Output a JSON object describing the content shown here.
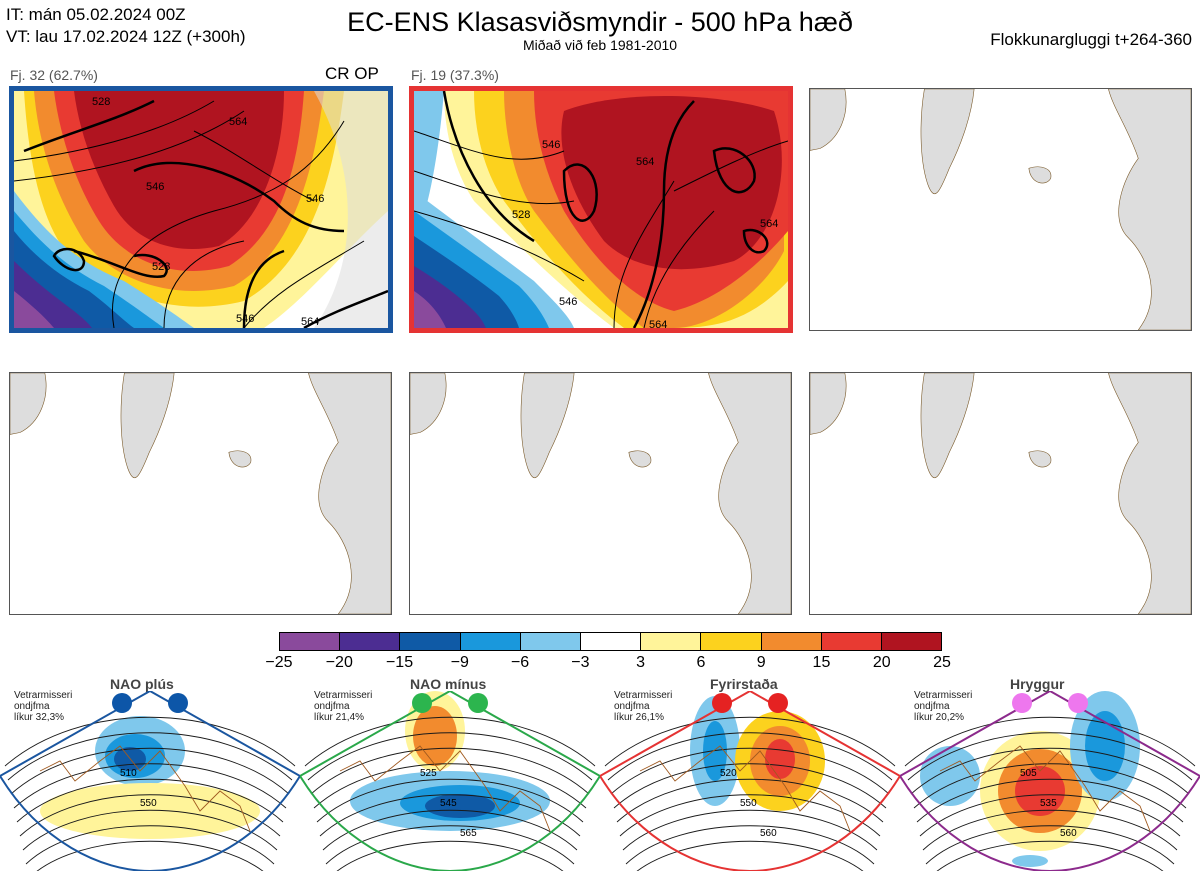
{
  "header": {
    "it_line": "IT: mán 05.02.2024 00Z",
    "vt_line": "VT: lau 17.02.2024 12Z  (+300h)",
    "title": "EC-ENS Klasasviðsmyndir - 500 hPa hæð",
    "subtitle": "Miðað við feb 1981-2010",
    "window": "Flokkunargluggi t+264-360"
  },
  "panels": [
    {
      "label": "Fj. 32 (62.7%)",
      "tag": "CR OP",
      "border": "#1a56a0",
      "contours": [
        "528",
        "546",
        "564",
        "546",
        "528",
        "546",
        "564"
      ]
    },
    {
      "label": "Fj. 19 (37.3%)",
      "tag": "",
      "border": "#e53333",
      "contours": [
        "546",
        "564",
        "528",
        "546",
        "564",
        "564"
      ]
    },
    {
      "label": "",
      "tag": "",
      "border": "#555555"
    },
    {
      "label": "",
      "tag": "",
      "border": "#555555"
    },
    {
      "label": "",
      "tag": "",
      "border": "#555555"
    },
    {
      "label": "",
      "tag": "",
      "border": "#555555"
    }
  ],
  "colorbar": {
    "colors": [
      "#8a4a9c",
      "#4c2d92",
      "#0f5aa6",
      "#1a98dc",
      "#7fc8ec",
      "#ffffff",
      "#fff49a",
      "#fcd21e",
      "#f28b2e",
      "#e83a32",
      "#b01420"
    ],
    "ticks": [
      "−25",
      "−20",
      "−15",
      "−9",
      "−6",
      "−3",
      "3",
      "6",
      "9",
      "15",
      "20",
      "25"
    ]
  },
  "regimes": [
    {
      "title": "NAO plús",
      "note": [
        "Vetrarmisseri",
        "ondjfma",
        "líkur 32,3%"
      ],
      "color": "#1a56a0",
      "dot": "#0d56a8",
      "labels": [
        "510",
        "550"
      ]
    },
    {
      "title": "NAO mínus",
      "note": [
        "Vetrarmisseri",
        "ondjfma",
        "líkur 21,4%"
      ],
      "color": "#2aa84a",
      "dot": "#2cb54e",
      "labels": [
        "525",
        "545",
        "565"
      ]
    },
    {
      "title": "Fyrirstaða",
      "note": [
        "Vetrarmisseri",
        "ondjfma",
        "líkur 26,1%"
      ],
      "color": "#e53333",
      "dot": "#e52222",
      "labels": [
        "520",
        "550",
        "560"
      ]
    },
    {
      "title": "Hryggur",
      "note": [
        "Vetrarmisseri",
        "ondjfma",
        "líkur 20,2%"
      ],
      "color": "#8c2a8c",
      "dot": "#ee77ee",
      "labels": [
        "505",
        "535",
        "560"
      ]
    }
  ]
}
